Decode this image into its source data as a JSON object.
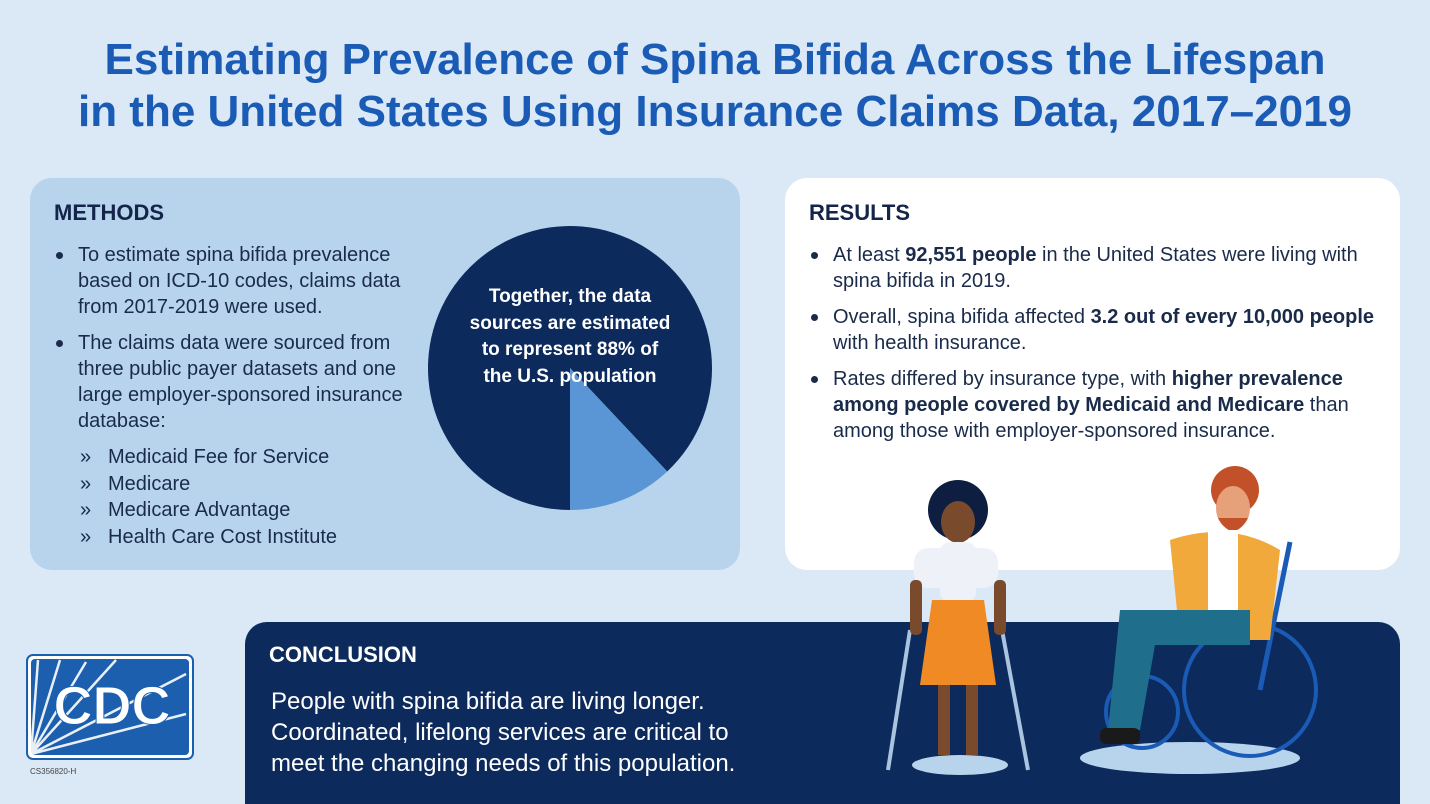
{
  "header": {
    "title_lines": [
      "Estimating Prevalence of Spina Bifida Across the Lifespan",
      "in the United States Using Insurance Claims Data, 2017–2019"
    ]
  },
  "methods": {
    "heading": "METHODS",
    "bullets": [
      "To estimate spina bifida prevalence based on ICD-10 codes, claims data from 2017-2019 were used.",
      "The claims data were sourced from three public payer datasets and one large employer-sponsored insurance database:"
    ],
    "sub_marker": "»",
    "sub_bullets": [
      "Medicaid Fee for Service",
      "Medicare",
      "Medicare Advantage",
      "Health Care Cost Institute"
    ]
  },
  "pie": {
    "text_lines": [
      "Together, the data",
      "sources are estimated",
      "to represent 88% of",
      "the U.S. population"
    ],
    "values": [
      88,
      12
    ],
    "colors": [
      "#0d2a5c",
      "#5a96d6"
    ]
  },
  "results": {
    "heading": "RESULTS",
    "bullets": [
      [
        {
          "text": "At least "
        },
        {
          "text": "92,551 people",
          "bold": true
        },
        {
          "text": " in the United States were living with spina bifida in 2019."
        }
      ],
      [
        {
          "text": "Overall, spina bifida affected "
        },
        {
          "text": "3.2 out of every 10,000 people",
          "bold": true
        },
        {
          "text": " with health insurance."
        }
      ],
      [
        {
          "text": "Rates differed by insurance type, with "
        },
        {
          "text": "higher prevalence among people covered by Medicaid and Medicare",
          "bold": true
        },
        {
          "text": " than among those with employer-sponsored insurance."
        }
      ]
    ]
  },
  "conclusion": {
    "heading": "CONCLUSION",
    "lines": [
      "People with spina bifida are living longer.",
      "Coordinated, lifelong services are critical to",
      "meet the changing needs of this population."
    ]
  },
  "logo": {
    "text": "CDC"
  },
  "footer_code": "CS356820-H"
}
